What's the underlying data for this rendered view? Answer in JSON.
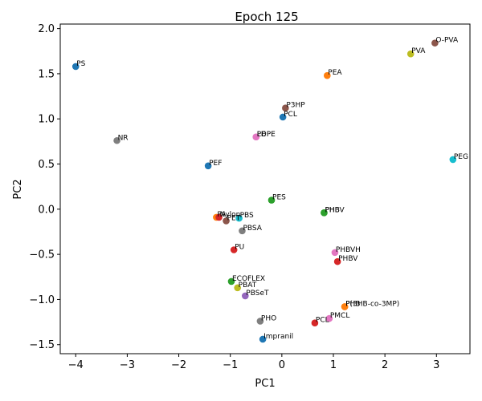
{
  "chart_data": {
    "type": "scatter",
    "title": "Epoch 125",
    "xlabel": "PC1",
    "ylabel": "PC2",
    "xlim": [
      -4.3,
      3.65
    ],
    "ylim": [
      -1.6,
      2.05
    ],
    "xticks": [
      -4,
      -3,
      -2,
      -1,
      0,
      1,
      2,
      3
    ],
    "yticks": [
      -1.5,
      -1.0,
      -0.5,
      0.0,
      0.5,
      1.0,
      1.5,
      2.0
    ],
    "xtick_labels": [
      "−4",
      "−3",
      "−2",
      "−1",
      "0",
      "1",
      "2",
      "3"
    ],
    "ytick_labels": [
      "−1.5",
      "−1.0",
      "−0.5",
      "0.0",
      "0.5",
      "1.0",
      "1.5",
      "2.0"
    ],
    "grid": false,
    "points": [
      {
        "label": "PS",
        "x": -4.0,
        "y": 1.58,
        "color": "#1f77b4"
      },
      {
        "label": "NR",
        "x": -3.2,
        "y": 0.76,
        "color": "#7f7f7f"
      },
      {
        "label": "PEF",
        "x": -1.43,
        "y": 0.48,
        "color": "#1f77b4"
      },
      {
        "label": "PA",
        "x": -1.27,
        "y": -0.09,
        "color": "#ff7f0e"
      },
      {
        "label": "Nylon",
        "x": -1.22,
        "y": -0.09,
        "color": "#d62728"
      },
      {
        "label": "PET",
        "x": -1.08,
        "y": -0.13,
        "color": "#8c564b"
      },
      {
        "label": "PBS",
        "x": -0.83,
        "y": -0.1,
        "color": "#17becf"
      },
      {
        "label": "PBSA",
        "x": -0.77,
        "y": -0.24,
        "color": "#7f7f7f"
      },
      {
        "label": "PU",
        "x": -0.93,
        "y": -0.45,
        "color": "#d62728"
      },
      {
        "label": "ECOFLEX",
        "x": -0.98,
        "y": -0.8,
        "color": "#2ca02c"
      },
      {
        "label": "PBAT",
        "x": -0.86,
        "y": -0.87,
        "color": "#bcbd22"
      },
      {
        "label": "PBSeT",
        "x": -0.71,
        "y": -0.96,
        "color": "#9467bd"
      },
      {
        "label": "PHO",
        "x": -0.42,
        "y": -1.24,
        "color": "#7f7f7f"
      },
      {
        "label": "Impranil",
        "x": -0.37,
        "y": -1.44,
        "color": "#1f77b4"
      },
      {
        "label": "LDPE",
        "x": -0.5,
        "y": 0.8,
        "color": "#e377c2"
      },
      {
        "label": "PE",
        "x": -0.5,
        "y": 0.8,
        "color": "#e377c2"
      },
      {
        "label": "PES",
        "x": -0.2,
        "y": 0.1,
        "color": "#2ca02c"
      },
      {
        "label": "P3HP",
        "x": 0.07,
        "y": 1.12,
        "color": "#8c564b"
      },
      {
        "label": "PCL",
        "x": 0.02,
        "y": 1.02,
        "color": "#1f77b4"
      },
      {
        "label": "PEA",
        "x": 0.88,
        "y": 1.48,
        "color": "#ff7f0e"
      },
      {
        "label": "PHB",
        "x": 0.82,
        "y": -0.04,
        "color": "#2ca02c"
      },
      {
        "label": "PHBV",
        "x": 0.82,
        "y": -0.04,
        "color": "#2ca02c"
      },
      {
        "label": "PHBVH",
        "x": 1.03,
        "y": -0.48,
        "color": "#e377c2"
      },
      {
        "label": "PHBV",
        "x": 1.08,
        "y": -0.58,
        "color": "#d62728"
      },
      {
        "label": "PHB",
        "x": 1.22,
        "y": -1.08,
        "color": "#ff7f0e"
      },
      {
        "label": "P(3HB-co-3MP)",
        "x": 1.22,
        "y": -1.08,
        "color": "#ff7f0e"
      },
      {
        "label": "PMCL",
        "x": 0.92,
        "y": -1.21,
        "color": "#e377c2"
      },
      {
        "label": "PCL",
        "x": 0.64,
        "y": -1.26,
        "color": "#d62728"
      },
      {
        "label": "PVA",
        "x": 2.5,
        "y": 1.72,
        "color": "#bcbd22"
      },
      {
        "label": "O-PVA",
        "x": 2.97,
        "y": 1.84,
        "color": "#8c564b"
      },
      {
        "label": "PEG",
        "x": 3.32,
        "y": 0.55,
        "color": "#17becf"
      }
    ]
  }
}
